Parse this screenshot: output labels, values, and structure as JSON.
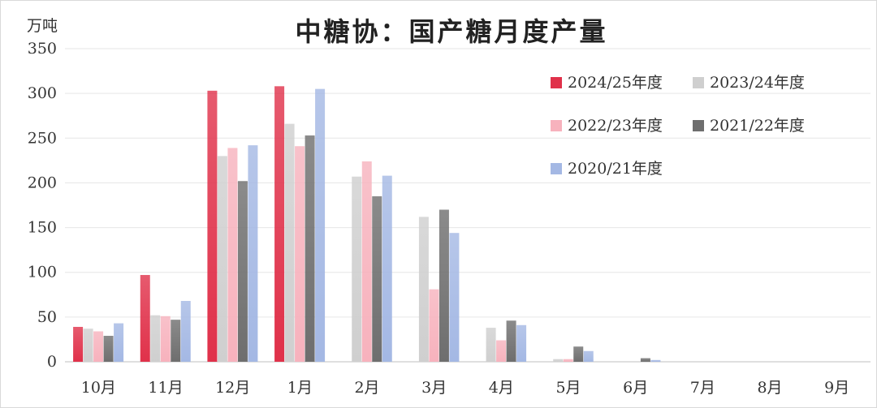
{
  "chart_data": {
    "type": "bar",
    "title": "中糖协：国产糖月度产量",
    "ylabel": "万吨",
    "ylim": [
      0,
      350
    ],
    "yticks": [
      0,
      50,
      100,
      150,
      200,
      250,
      300,
      350
    ],
    "grid": true,
    "legend_position": "top-right",
    "categories": [
      "10月",
      "11月",
      "12月",
      "1月",
      "2月",
      "3月",
      "4月",
      "5月",
      "6月",
      "7月",
      "8月",
      "9月"
    ],
    "series": [
      {
        "name": "2024/25年度",
        "color": "#e0314a",
        "values": [
          39,
          97,
          303,
          308,
          null,
          null,
          null,
          null,
          null,
          null,
          null,
          null
        ]
      },
      {
        "name": "2023/24年度",
        "color": "#cfcfcf",
        "values": [
          37,
          52,
          230,
          266,
          207,
          162,
          38,
          3,
          0,
          0,
          0,
          0
        ]
      },
      {
        "name": "2022/23年度",
        "color": "#f7b2bd",
        "values": [
          34,
          51,
          239,
          241,
          224,
          81,
          24,
          3,
          0,
          0,
          0,
          0
        ]
      },
      {
        "name": "2021/22年度",
        "color": "#6e6e6e",
        "values": [
          29,
          47,
          202,
          253,
          185,
          170,
          46,
          17,
          4,
          0,
          0,
          0
        ]
      },
      {
        "name": "2020/21年度",
        "color": "#a4b8e4",
        "values": [
          43,
          68,
          242,
          305,
          208,
          144,
          41,
          12,
          2,
          0,
          0,
          0
        ]
      }
    ]
  }
}
